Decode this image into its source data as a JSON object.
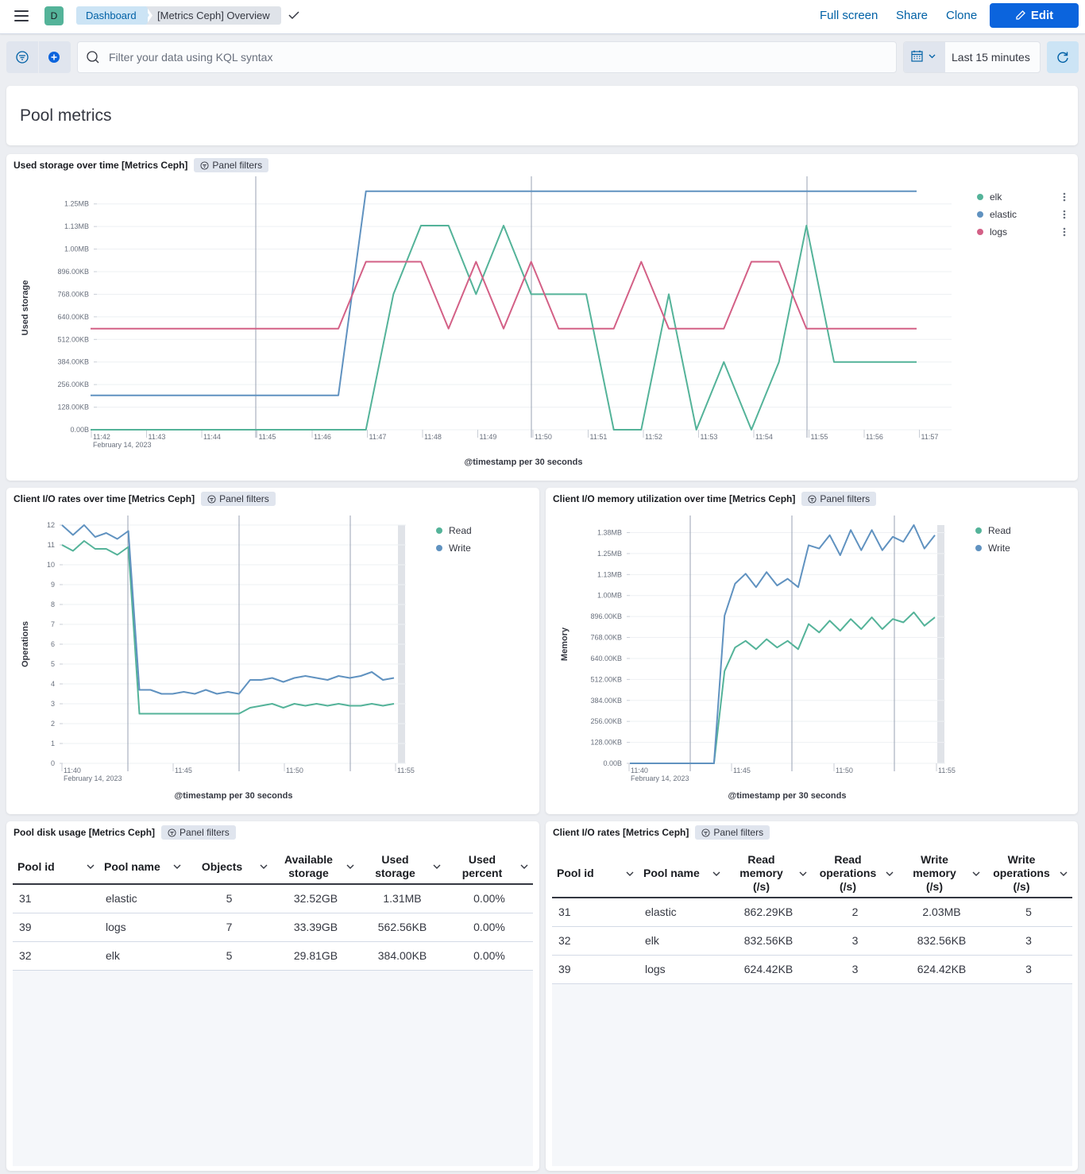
{
  "topbar": {
    "avatar": "D",
    "breadcrumb": [
      "Dashboard",
      "[Metrics Ceph] Overview"
    ],
    "links": [
      "Full screen",
      "Share",
      "Clone"
    ],
    "edit_label": "Edit"
  },
  "querybar": {
    "placeholder": "Filter your data using KQL syntax",
    "time_range": "Last 15 minutes"
  },
  "markdown": {
    "title": "Pool metrics"
  },
  "panels": {
    "used_storage": {
      "title": "Used storage over time [Metrics Ceph]",
      "filter_label": "Panel filters"
    },
    "io_rates": {
      "title": "Client I/O rates over time [Metrics Ceph]",
      "filter_label": "Panel filters"
    },
    "io_memory": {
      "title": "Client I/O memory utilization over time [Metrics Ceph]",
      "filter_label": "Panel filters"
    },
    "pool_disk": {
      "title": "Pool disk usage [Metrics Ceph]",
      "filter_label": "Panel filters"
    },
    "io_rates_table": {
      "title": "Client I/O rates [Metrics Ceph]",
      "filter_label": "Panel filters"
    }
  },
  "colors": {
    "green": "#54b399",
    "blue": "#6092c0",
    "pink": "#d36086",
    "accent": "#0b64dd"
  },
  "chart_data": [
    {
      "type": "line",
      "ylabel": "Used storage",
      "xlabel": "@timestamp per 30 seconds",
      "x_ticks": [
        "11:42",
        "11:43",
        "11:44",
        "11:45",
        "11:46",
        "11:47",
        "11:48",
        "11:49",
        "11:50",
        "11:51",
        "11:52",
        "11:53",
        "11:54",
        "11:55",
        "11:56",
        "11:57"
      ],
      "x_date": "February 14, 2023",
      "y_ticks": [
        "0.00B",
        "128.00KB",
        "256.00KB",
        "384.00KB",
        "512.00KB",
        "640.00KB",
        "768.00KB",
        "896.00KB",
        "1.00MB",
        "1.13MB",
        "1.25MB"
      ],
      "ylim": [
        0,
        1.35
      ],
      "y_unit": "MB",
      "x": [
        0,
        1,
        2,
        3,
        4,
        5,
        6,
        7,
        8,
        9,
        10,
        11,
        12,
        13,
        14,
        15,
        16,
        17,
        18,
        19,
        20,
        21,
        22,
        23,
        24,
        25,
        26,
        27,
        28,
        29,
        30
      ],
      "series": [
        {
          "name": "elk",
          "values": [
            0,
            0,
            0,
            0,
            0,
            0,
            0,
            0,
            0,
            0,
            0,
            0.75,
            1.13,
            1.13,
            0.75,
            1.13,
            0.75,
            0.75,
            0.75,
            0,
            0,
            0.75,
            0,
            0.375,
            0,
            0.375,
            1.13,
            0.375,
            0.375,
            0.375,
            0.375
          ]
        },
        {
          "name": "elastic",
          "values": [
            0.19,
            0.19,
            0.19,
            0.19,
            0.19,
            0.19,
            0.19,
            0.19,
            0.19,
            0.19,
            1.32,
            1.32,
            1.32,
            1.32,
            1.32,
            1.32,
            1.32,
            1.32,
            1.32,
            1.32,
            1.32,
            1.32,
            1.32,
            1.32,
            1.32,
            1.32,
            1.32,
            1.32,
            1.32,
            1.32,
            1.32
          ]
        },
        {
          "name": "logs",
          "values": [
            0.56,
            0.56,
            0.56,
            0.56,
            0.56,
            0.56,
            0.56,
            0.56,
            0.56,
            0.56,
            0.93,
            0.93,
            0.93,
            0.56,
            0.93,
            0.56,
            0.93,
            0.56,
            0.56,
            0.56,
            0.93,
            0.56,
            0.56,
            0.56,
            0.93,
            0.93,
            0.56,
            0.56,
            0.56,
            0.56,
            0.56
          ]
        }
      ],
      "legend": "right"
    },
    {
      "type": "line",
      "ylabel": "Operations",
      "xlabel": "@timestamp per 30 seconds",
      "x_ticks": [
        "11:40",
        "11:45",
        "11:50",
        "11:55"
      ],
      "x_date": "February 14, 2023",
      "y_ticks": [
        "0",
        "1",
        "2",
        "3",
        "4",
        "5",
        "6",
        "7",
        "8",
        "9",
        "10",
        "11",
        "12"
      ],
      "ylim": [
        0,
        12
      ],
      "series": [
        {
          "name": "Read",
          "values": [
            11,
            10.7,
            11.2,
            10.8,
            10.8,
            10.5,
            10.9,
            2.5,
            2.5,
            2.5,
            2.5,
            2.5,
            2.5,
            2.5,
            2.5,
            2.5,
            2.5,
            2.8,
            2.9,
            3,
            2.8,
            3,
            2.9,
            3,
            2.9,
            3,
            2.9,
            2.9,
            3,
            2.9,
            3
          ]
        },
        {
          "name": "Write",
          "values": [
            12,
            11.5,
            12,
            11.4,
            11.6,
            11.3,
            11.7,
            3.7,
            3.7,
            3.5,
            3.5,
            3.6,
            3.5,
            3.7,
            3.5,
            3.6,
            3.5,
            4.2,
            4.2,
            4.3,
            4.1,
            4.3,
            4.4,
            4.3,
            4.2,
            4.4,
            4.3,
            4.4,
            4.6,
            4.2,
            4.3
          ]
        }
      ],
      "legend": "right"
    },
    {
      "type": "line",
      "ylabel": "Memory",
      "xlabel": "@timestamp per 30 seconds",
      "x_ticks": [
        "11:40",
        "11:45",
        "11:50",
        "11:55"
      ],
      "x_date": "February 14, 2023",
      "y_ticks": [
        "0.00B",
        "128.00KB",
        "256.00KB",
        "384.00KB",
        "512.00KB",
        "640.00KB",
        "768.00KB",
        "896.00KB",
        "1.00MB",
        "1.13MB",
        "1.25MB",
        "1.38MB"
      ],
      "ylim": [
        0,
        1.42
      ],
      "y_unit": "MB",
      "series": [
        {
          "name": "Read",
          "values": [
            0,
            0,
            0,
            0,
            0,
            0,
            0,
            0,
            0,
            0.55,
            0.69,
            0.73,
            0.68,
            0.74,
            0.69,
            0.73,
            0.68,
            0.83,
            0.78,
            0.85,
            0.79,
            0.86,
            0.8,
            0.87,
            0.8,
            0.86,
            0.84,
            0.9,
            0.82,
            0.87
          ]
        },
        {
          "name": "Write",
          "values": [
            0,
            0,
            0,
            0,
            0,
            0,
            0,
            0,
            0,
            0.88,
            1.07,
            1.13,
            1.05,
            1.14,
            1.06,
            1.1,
            1.05,
            1.3,
            1.28,
            1.36,
            1.24,
            1.39,
            1.27,
            1.39,
            1.27,
            1.35,
            1.32,
            1.42,
            1.28,
            1.36
          ]
        }
      ],
      "legend": "right"
    }
  ],
  "pool_disk_table": {
    "columns": [
      "Pool id",
      "Pool name",
      "Objects",
      "Available storage",
      "Used storage",
      "Used percent"
    ],
    "rows": [
      [
        "31",
        "elastic",
        "5",
        "32.52GB",
        "1.31MB",
        "0.00%"
      ],
      [
        "39",
        "logs",
        "7",
        "33.39GB",
        "562.56KB",
        "0.00%"
      ],
      [
        "32",
        "elk",
        "5",
        "29.81GB",
        "384.00KB",
        "0.00%"
      ]
    ]
  },
  "io_rates_table": {
    "columns": [
      "Pool id",
      "Pool name",
      "Read memory (/s)",
      "Read operations (/s)",
      "Write memory (/s)",
      "Write operations (/s)"
    ],
    "rows": [
      [
        "31",
        "elastic",
        "862.29KB",
        "2",
        "2.03MB",
        "5"
      ],
      [
        "32",
        "elk",
        "832.56KB",
        "3",
        "832.56KB",
        "3"
      ],
      [
        "39",
        "logs",
        "624.42KB",
        "3",
        "624.42KB",
        "3"
      ]
    ]
  }
}
